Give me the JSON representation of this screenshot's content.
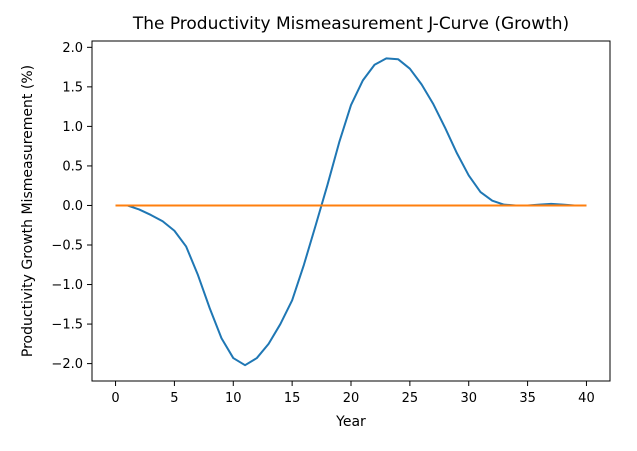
{
  "chart_data": {
    "type": "line",
    "title": "The Productivity Mismeasurement J-Curve (Growth)",
    "xlabel": "Year",
    "ylabel": "Productivity Growth Mismeasurement (%)",
    "xlim": [
      -2,
      42
    ],
    "ylim": [
      -2.22,
      2.08
    ],
    "x_ticks": [
      0,
      5,
      10,
      15,
      20,
      25,
      30,
      35,
      40
    ],
    "x_tick_labels": [
      "0",
      "5",
      "10",
      "15",
      "20",
      "25",
      "30",
      "35",
      "40"
    ],
    "y_ticks": [
      -2.0,
      -1.5,
      -1.0,
      -0.5,
      0.0,
      0.5,
      1.0,
      1.5,
      2.0
    ],
    "y_tick_labels": [
      "−2.0",
      "−1.5",
      "−1.0",
      "−0.5",
      "0.0",
      "0.5",
      "1.0",
      "1.5",
      "2.0"
    ],
    "grid": false,
    "series": [
      {
        "color": "#1f77b4",
        "x": [
          0,
          1,
          2,
          3,
          4,
          5,
          6,
          7,
          8,
          9,
          10,
          11,
          12,
          13,
          14,
          15,
          16,
          17,
          18,
          19,
          20,
          21,
          22,
          23,
          24,
          25,
          26,
          27,
          28,
          29,
          30,
          31,
          32,
          33,
          34,
          35,
          36,
          37,
          38,
          39,
          40
        ],
        "y": [
          0.0,
          0.0,
          -0.05,
          -0.12,
          -0.2,
          -0.32,
          -0.52,
          -0.88,
          -1.3,
          -1.68,
          -1.93,
          -2.02,
          -1.93,
          -1.75,
          -1.5,
          -1.2,
          -0.75,
          -0.25,
          0.26,
          0.8,
          1.27,
          1.58,
          1.78,
          1.86,
          1.85,
          1.73,
          1.53,
          1.28,
          0.98,
          0.66,
          0.38,
          0.17,
          0.06,
          0.01,
          0.0,
          0.0,
          0.01,
          0.02,
          0.01,
          0.0,
          0.0
        ]
      },
      {
        "color": "#ff7f0e",
        "x": [
          0,
          40
        ],
        "y": [
          0.0,
          0.0
        ]
      }
    ]
  }
}
